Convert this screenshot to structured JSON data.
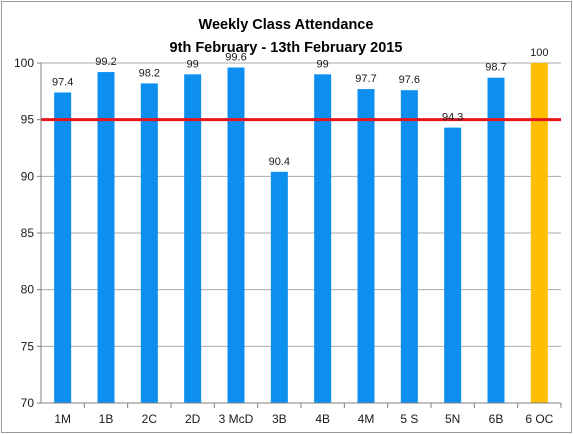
{
  "chart_data": {
    "type": "bar",
    "title": "Weekly Class Attendance",
    "subtitle": "9th February - 13th February 2015",
    "xlabel": "",
    "ylabel": "",
    "categories": [
      "1M",
      "1B",
      "2C",
      "2D",
      "3 McD",
      "3B",
      "4B",
      "4M",
      "5 S",
      "5N",
      "6B",
      "6 OC"
    ],
    "values": [
      97.4,
      99.2,
      98.2,
      99,
      99.6,
      90.4,
      99,
      97.7,
      97.6,
      94.3,
      98.7,
      100
    ],
    "data_labels": [
      "97.4",
      "99.2",
      "98.2",
      "99",
      "99.6",
      "90.4",
      "99",
      "97.7",
      "97.6",
      "94.3",
      "98.7",
      "100"
    ],
    "ylim": [
      70,
      100
    ],
    "yticks": [
      70,
      75,
      80,
      85,
      90,
      95,
      100
    ],
    "reference_line": {
      "value": 95,
      "color": "#e8141c"
    },
    "grid": "horizontal",
    "bar_color": "#0d8ff0",
    "highlight_bar": {
      "category": "6 OC",
      "color": "#ffbf00"
    },
    "legend": "none"
  }
}
